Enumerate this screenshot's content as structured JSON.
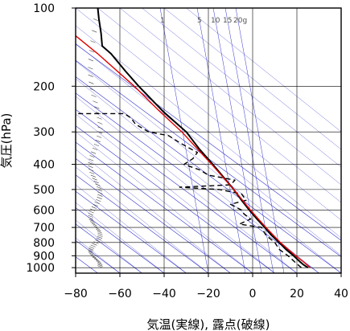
{
  "chart_data": {
    "type": "line",
    "title": "",
    "xlabel": "気温(実線), 露点(破線)",
    "ylabel": "気圧(hPa)",
    "xlim": [
      -80,
      40
    ],
    "ylim": [
      1050,
      100
    ],
    "yscale": "log",
    "x_ticks": [
      -80,
      -60,
      -40,
      -20,
      0,
      20,
      40
    ],
    "x_tick_labels": [
      "−80",
      "−60",
      "−40",
      "−20",
      "0",
      "20",
      "40"
    ],
    "y_ticks": [
      100,
      200,
      300,
      400,
      500,
      600,
      700,
      800,
      900,
      1000
    ],
    "y_tick_labels": [
      "100",
      "200",
      "300",
      "400",
      "500",
      "600",
      "700",
      "800",
      "900",
      "1000"
    ],
    "grid": true,
    "mixing_ratio_labels": [
      "1",
      "5",
      "10",
      "15",
      "20g"
    ],
    "colors": {
      "temperature": "#000000",
      "dewpoint": "#000000",
      "reference": "#dd0000",
      "isotherm": "#3333cc",
      "grid": "#000000"
    },
    "series": [
      {
        "style": "solid",
        "points": [
          {
            "p": 1000,
            "t": 25
          },
          {
            "p": 975,
            "t": 23
          },
          {
            "p": 950,
            "t": 21.5
          },
          {
            "p": 925,
            "t": 20
          },
          {
            "p": 900,
            "t": 18.5
          },
          {
            "p": 850,
            "t": 15
          },
          {
            "p": 800,
            "t": 12
          },
          {
            "p": 750,
            "t": 8.5
          },
          {
            "p": 700,
            "t": 5.5
          },
          {
            "p": 650,
            "t": 2
          },
          {
            "p": 600,
            "t": -1.5
          },
          {
            "p": 550,
            "t": -5
          },
          {
            "p": 500,
            "t": -8.5
          },
          {
            "p": 450,
            "t": -13
          },
          {
            "p": 400,
            "t": -18
          },
          {
            "p": 350,
            "t": -24
          },
          {
            "p": 300,
            "t": -30
          },
          {
            "p": 250,
            "t": -40.5
          },
          {
            "p": 200,
            "t": -51.5
          },
          {
            "p": 175,
            "t": -57.5
          },
          {
            "p": 150,
            "t": -64
          },
          {
            "p": 140,
            "t": -68
          },
          {
            "p": 125,
            "t": -68.5
          },
          {
            "p": 110,
            "t": -69.5
          },
          {
            "p": 100,
            "t": -70
          }
        ]
      },
      {
        "style": "dashed",
        "points": [
          {
            "p": 1000,
            "t": 22
          },
          {
            "p": 950,
            "t": 19
          },
          {
            "p": 900,
            "t": 16
          },
          {
            "p": 850,
            "t": 12
          },
          {
            "p": 800,
            "t": 10
          },
          {
            "p": 750,
            "t": 6
          },
          {
            "p": 700,
            "t": 4
          },
          {
            "p": 680,
            "t": -6
          },
          {
            "p": 650,
            "t": -1
          },
          {
            "p": 620,
            "t": -4
          },
          {
            "p": 600,
            "t": -5
          },
          {
            "p": 570,
            "t": -10
          },
          {
            "p": 550,
            "t": -3
          },
          {
            "p": 520,
            "t": -5
          },
          {
            "p": 500,
            "t": -15
          },
          {
            "p": 490,
            "t": -33
          },
          {
            "p": 480,
            "t": -10
          },
          {
            "p": 460,
            "t": -8
          },
          {
            "p": 440,
            "t": -20
          },
          {
            "p": 420,
            "t": -24
          },
          {
            "p": 400,
            "t": -31
          },
          {
            "p": 380,
            "t": -27
          },
          {
            "p": 360,
            "t": -25
          },
          {
            "p": 345,
            "t": -29
          },
          {
            "p": 330,
            "t": -33
          },
          {
            "p": 310,
            "t": -38
          },
          {
            "p": 300,
            "t": -47
          },
          {
            "p": 280,
            "t": -53
          },
          {
            "p": 265,
            "t": -55
          },
          {
            "p": 255,
            "t": -58
          },
          {
            "p": 255,
            "t": -80
          }
        ]
      },
      {
        "style": "solid",
        "points": [
          {
            "p": 1000,
            "t": 26
          },
          {
            "p": 950,
            "t": 23
          },
          {
            "p": 900,
            "t": 19.5
          },
          {
            "p": 850,
            "t": 16
          },
          {
            "p": 800,
            "t": 12.5
          },
          {
            "p": 700,
            "t": 6
          },
          {
            "p": 600,
            "t": -1
          },
          {
            "p": 500,
            "t": -8.5
          },
          {
            "p": 400,
            "t": -18.5
          },
          {
            "p": 300,
            "t": -32
          },
          {
            "p": 250,
            "t": -42
          },
          {
            "p": 200,
            "t": -53.5
          },
          {
            "p": 150,
            "t": -70
          },
          {
            "p": 130,
            "t": -79
          },
          {
            "p": 124,
            "t": -82
          }
        ]
      }
    ]
  }
}
